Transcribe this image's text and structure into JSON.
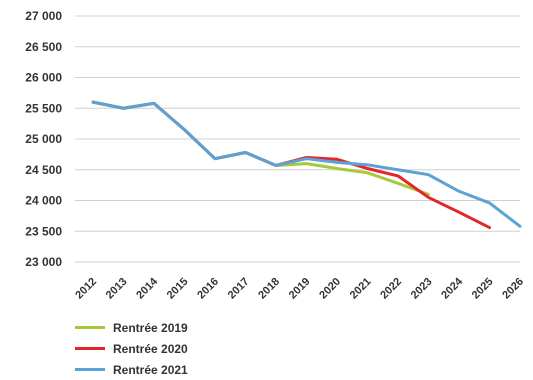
{
  "chart_data": {
    "type": "line",
    "x": [
      "2012",
      "2013",
      "2014",
      "2015",
      "2016",
      "2017",
      "2018",
      "2019",
      "2020",
      "2021",
      "2022",
      "2023",
      "2024",
      "2025",
      "2026"
    ],
    "y_ticks": [
      23000,
      23500,
      24000,
      24500,
      25000,
      25500,
      26000,
      26500,
      27000
    ],
    "y_tick_labels": [
      "23 000",
      "23 500",
      "24 000",
      "24 500",
      "25 000",
      "25 500",
      "26 000",
      "26 500",
      "27 000"
    ],
    "ylim": [
      23000,
      27000
    ],
    "grid": "horizontal",
    "legend_position": "bottom-left",
    "series": [
      {
        "name": "Rentrée 2019",
        "color": "#a8c83c",
        "values": [
          25600,
          25500,
          25580,
          25150,
          24680,
          24780,
          24570,
          24600,
          24520,
          24450,
          24280,
          24100,
          null,
          null,
          null
        ]
      },
      {
        "name": "Rentrée 2020",
        "color": "#e3262b",
        "values": [
          25600,
          25500,
          25580,
          25150,
          24680,
          24780,
          24570,
          24700,
          24670,
          24520,
          24400,
          24050,
          23810,
          23560,
          null
        ]
      },
      {
        "name": "Rentrée 2021",
        "color": "#5ba3d4",
        "values": [
          25600,
          25500,
          25580,
          25150,
          24680,
          24780,
          24570,
          24680,
          24620,
          24580,
          24500,
          24420,
          24150,
          23960,
          23580
        ]
      }
    ]
  }
}
